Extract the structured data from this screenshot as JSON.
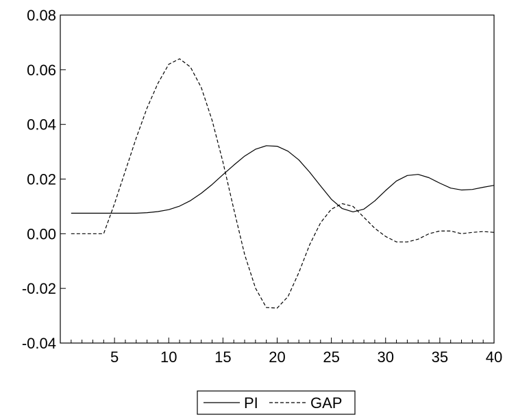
{
  "chart_data": {
    "type": "line",
    "title": "",
    "xlabel": "",
    "ylabel": "",
    "xlim": [
      0,
      40
    ],
    "ylim": [
      -0.04,
      0.08
    ],
    "x_ticks": [
      5,
      10,
      15,
      20,
      25,
      30,
      35,
      40
    ],
    "x_tick_labels": [
      "5",
      "10",
      "15",
      "20",
      "25",
      "30",
      "35",
      "40"
    ],
    "y_ticks": [
      -0.04,
      -0.02,
      0.0,
      0.02,
      0.04,
      0.06,
      0.08
    ],
    "y_tick_labels": [
      "-0.04",
      "-0.02",
      "0.00",
      "0.02",
      "0.04",
      "0.06",
      "0.08"
    ],
    "grid": false,
    "legend_position": "bottom-center",
    "x": [
      1,
      2,
      3,
      4,
      5,
      6,
      7,
      8,
      9,
      10,
      11,
      12,
      13,
      14,
      15,
      16,
      17,
      18,
      19,
      20,
      21,
      22,
      23,
      24,
      25,
      26,
      27,
      28,
      29,
      30,
      31,
      32,
      33,
      34,
      35,
      36,
      37,
      38,
      39,
      40
    ],
    "series": [
      {
        "name": "PI",
        "style": "solid",
        "color": "#000000",
        "values": [
          0.0075,
          0.0075,
          0.0075,
          0.0075,
          0.0075,
          0.0075,
          0.0075,
          0.0077,
          0.0081,
          0.0088,
          0.0101,
          0.0121,
          0.0148,
          0.018,
          0.0216,
          0.0251,
          0.0284,
          0.0309,
          0.0322,
          0.032,
          0.0302,
          0.027,
          0.0225,
          0.0175,
          0.0126,
          0.0092,
          0.008,
          0.009,
          0.012,
          0.0158,
          0.0193,
          0.0213,
          0.0217,
          0.0205,
          0.0185,
          0.0167,
          0.016,
          0.0162,
          0.017,
          0.0177
        ]
      },
      {
        "name": "GAP",
        "style": "dashed",
        "color": "#000000",
        "values": [
          0.0,
          0.0,
          0.0,
          0.0,
          0.011,
          0.023,
          0.035,
          0.046,
          0.055,
          0.062,
          0.064,
          0.061,
          0.0535,
          0.0415,
          0.0262,
          0.009,
          -0.0076,
          -0.0199,
          -0.027,
          -0.0272,
          -0.023,
          -0.0142,
          -0.004,
          0.004,
          0.009,
          0.011,
          0.01,
          0.006,
          0.002,
          -0.001,
          -0.003,
          -0.003,
          -0.002,
          0.0,
          0.001,
          0.001,
          0.0,
          0.0005,
          0.0008,
          0.0005
        ]
      }
    ]
  }
}
